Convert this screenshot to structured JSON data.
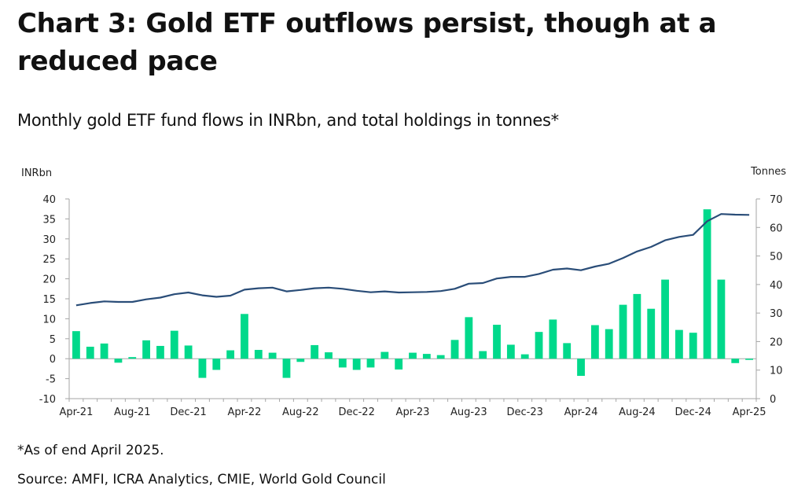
{
  "title": "Chart 3: Gold ETF outflows persist, though at a reduced pace",
  "subtitle": "Monthly gold ETF fund flows in INRbn, and total holdings in tonnes*",
  "footnote": "*As of end April 2025.",
  "source": "Source: AMFI, ICRA Analytics, CMIE, World Gold Council",
  "colors": {
    "bar": "#00d98b",
    "line": "#2a4d78",
    "axis": "#a6a6a6"
  },
  "chart_data": {
    "type": "bar+line",
    "ylabel": "INRbn",
    "y2label": "Tonnes",
    "ylim": [
      -10,
      40
    ],
    "y2lim": [
      0,
      70
    ],
    "yticks": [
      "40",
      "35",
      "30",
      "25",
      "20",
      "15",
      "10",
      "5",
      "0",
      "-5",
      "-10"
    ],
    "y2ticks": [
      "70",
      "60",
      "50",
      "40",
      "30",
      "20",
      "10",
      "0"
    ],
    "xtick_labels": [
      "Apr-21",
      "Aug-21",
      "Dec-21",
      "Apr-22",
      "Aug-22",
      "Dec-22",
      "Apr-23",
      "Aug-23",
      "Dec-23",
      "Apr-24",
      "Aug-24",
      "Dec-24",
      "Apr-25"
    ],
    "categories": [
      "Apr-21",
      "May-21",
      "Jun-21",
      "Jul-21",
      "Aug-21",
      "Sep-21",
      "Oct-21",
      "Nov-21",
      "Dec-21",
      "Jan-22",
      "Feb-22",
      "Mar-22",
      "Apr-22",
      "May-22",
      "Jun-22",
      "Jul-22",
      "Aug-22",
      "Sep-22",
      "Oct-22",
      "Nov-22",
      "Dec-22",
      "Jan-23",
      "Feb-23",
      "Mar-23",
      "Apr-23",
      "May-23",
      "Jun-23",
      "Jul-23",
      "Aug-23",
      "Sep-23",
      "Oct-23",
      "Nov-23",
      "Dec-23",
      "Jan-24",
      "Feb-24",
      "Mar-24",
      "Apr-24",
      "May-24",
      "Jun-24",
      "Jul-24",
      "Aug-24",
      "Sep-24",
      "Oct-24",
      "Nov-24",
      "Dec-24",
      "Jan-25",
      "Feb-25",
      "Mar-25",
      "Apr-25"
    ],
    "series": [
      {
        "type": "bar",
        "axis": "left",
        "values": [
          6.9,
          3.0,
          3.8,
          -1.0,
          0.4,
          4.6,
          3.2,
          7.0,
          3.3,
          -4.8,
          -2.8,
          2.1,
          11.2,
          2.2,
          1.5,
          -4.8,
          -0.8,
          3.4,
          1.6,
          -2.2,
          -2.8,
          -2.2,
          1.7,
          -2.7,
          1.5,
          1.2,
          0.9,
          4.7,
          10.4,
          1.9,
          8.5,
          3.5,
          1.1,
          6.7,
          9.8,
          3.9,
          -4.3,
          8.4,
          7.4,
          13.5,
          16.2,
          12.5,
          19.8,
          7.2,
          6.5,
          37.4,
          19.8,
          -1.1,
          -0.3
        ]
      },
      {
        "type": "line",
        "axis": "right",
        "values": [
          32.7,
          33.5,
          34.1,
          33.9,
          33.9,
          34.8,
          35.4,
          36.6,
          37.2,
          36.2,
          35.7,
          36.1,
          38.2,
          38.7,
          38.9,
          37.6,
          38.1,
          38.7,
          38.9,
          38.5,
          37.8,
          37.3,
          37.6,
          37.2,
          37.3,
          37.4,
          37.7,
          38.5,
          40.3,
          40.5,
          42.1,
          42.7,
          42.7,
          43.7,
          45.2,
          45.6,
          45.0,
          46.3,
          47.3,
          49.3,
          51.6,
          53.2,
          55.5,
          56.7,
          57.4,
          62.2,
          64.7,
          64.5,
          64.4
        ]
      }
    ]
  }
}
